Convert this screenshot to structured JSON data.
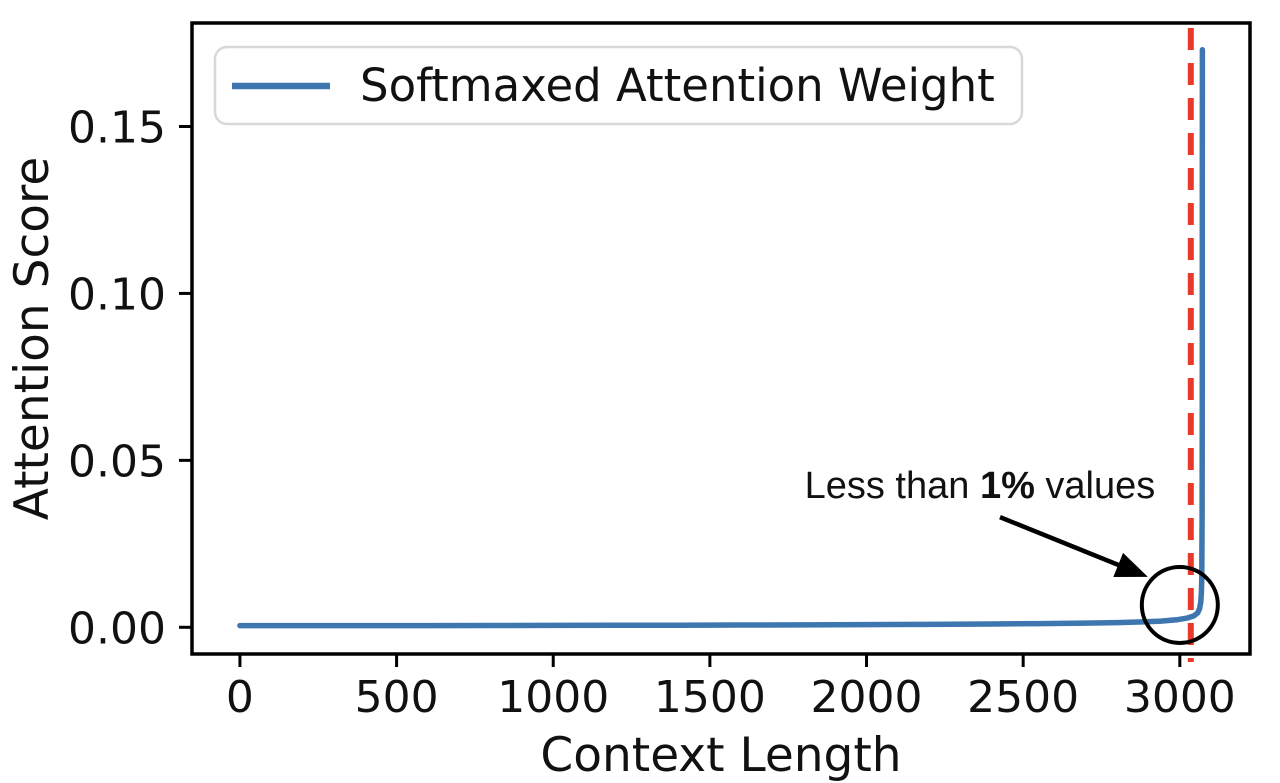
{
  "figure": {
    "background_color": "#ffffff"
  },
  "chart_data": {
    "type": "line",
    "title": "",
    "xlabel": "Context Length",
    "ylabel": "Attention Score",
    "xlim": [
      -153,
      3224
    ],
    "ylim": [
      -0.008,
      0.181
    ],
    "grid": false,
    "x_ticks": {
      "values": [
        0,
        500,
        1000,
        1500,
        2000,
        2500,
        3000
      ],
      "labels": [
        "0",
        "500",
        "1000",
        "1500",
        "2000",
        "2500",
        "3000"
      ]
    },
    "y_ticks": {
      "values": [
        0.0,
        0.05,
        0.1,
        0.15
      ],
      "labels": [
        "0.00",
        "0.05",
        "0.10",
        "0.15"
      ]
    },
    "legend": {
      "position": "upper left",
      "label": "Softmaxed Attention Weight",
      "swatch_color": "#3e76b0"
    },
    "series": [
      {
        "name": "Softmaxed Attention Weight",
        "color": "#3e76b0",
        "line_width": 5.5,
        "points": [
          [
            0,
            0.0005
          ],
          [
            200,
            0.0005
          ],
          [
            400,
            0.0005
          ],
          [
            600,
            0.00052
          ],
          [
            800,
            0.00055
          ],
          [
            1000,
            0.00058
          ],
          [
            1200,
            0.0006
          ],
          [
            1400,
            0.00064
          ],
          [
            1600,
            0.00068
          ],
          [
            1800,
            0.00073
          ],
          [
            2000,
            0.0008
          ],
          [
            2200,
            0.00088
          ],
          [
            2400,
            0.00098
          ],
          [
            2550,
            0.0011
          ],
          [
            2700,
            0.00125
          ],
          [
            2800,
            0.0014
          ],
          [
            2880,
            0.0016
          ],
          [
            2940,
            0.00185
          ],
          [
            2990,
            0.00225
          ],
          [
            3025,
            0.0028
          ],
          [
            3045,
            0.0034
          ],
          [
            3057,
            0.0043
          ],
          [
            3063,
            0.0056
          ],
          [
            3067,
            0.0076
          ],
          [
            3069,
            0.0106
          ],
          [
            3070,
            0.015
          ],
          [
            3070.6,
            0.022
          ],
          [
            3071,
            0.033
          ],
          [
            3071.4,
            0.052
          ],
          [
            3071.6,
            0.085
          ],
          [
            3071.8,
            0.135
          ],
          [
            3072,
            0.173
          ]
        ]
      }
    ],
    "threshold_line": {
      "x": 3035,
      "color": "#e8392b",
      "style": "dashed",
      "width": 6,
      "dash": [
        22,
        13
      ]
    },
    "annotation": {
      "text_prefix": "Less than ",
      "text_bold": "1%",
      "text_suffix": " values",
      "text_center": {
        "x": 2362,
        "y": 0.0426
      },
      "arrow_from": {
        "x": 2426,
        "y": 0.033
      },
      "arrow_to": {
        "x": 2898,
        "y": 0.0151
      },
      "circle_center": {
        "x": 3000,
        "y": 0.00668
      },
      "circle_radius_px": 38,
      "color": "#000000"
    },
    "colors": {
      "axis": "#000000",
      "text": "#111111"
    }
  }
}
